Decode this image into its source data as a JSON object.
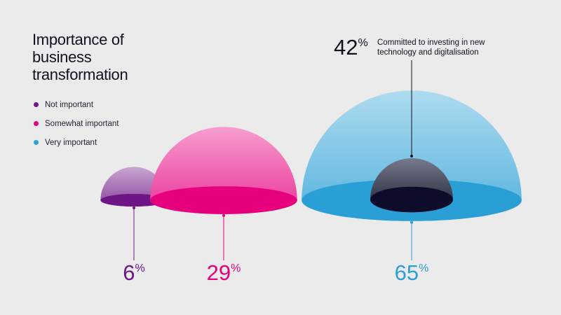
{
  "title": "Importance of business transformation",
  "legend": [
    {
      "label": "Not important",
      "color": "#6e1587"
    },
    {
      "label": "Somewhat important",
      "color": "#e6007e"
    },
    {
      "label": "Very important",
      "color": "#2a9fd6"
    }
  ],
  "chart_data": {
    "type": "bubble",
    "title": "Importance of business transformation",
    "unit": "%",
    "categories": [
      "Not important",
      "Somewhat important",
      "Very important"
    ],
    "values": [
      6,
      29,
      65
    ],
    "colors": [
      "#6e1587",
      "#e6007e",
      "#2a9fd6"
    ],
    "inset": {
      "parent": "Very important",
      "value": 42,
      "label": "Committed to investing in new technology and digitalisation",
      "color": "#2a2c3c"
    }
  }
}
